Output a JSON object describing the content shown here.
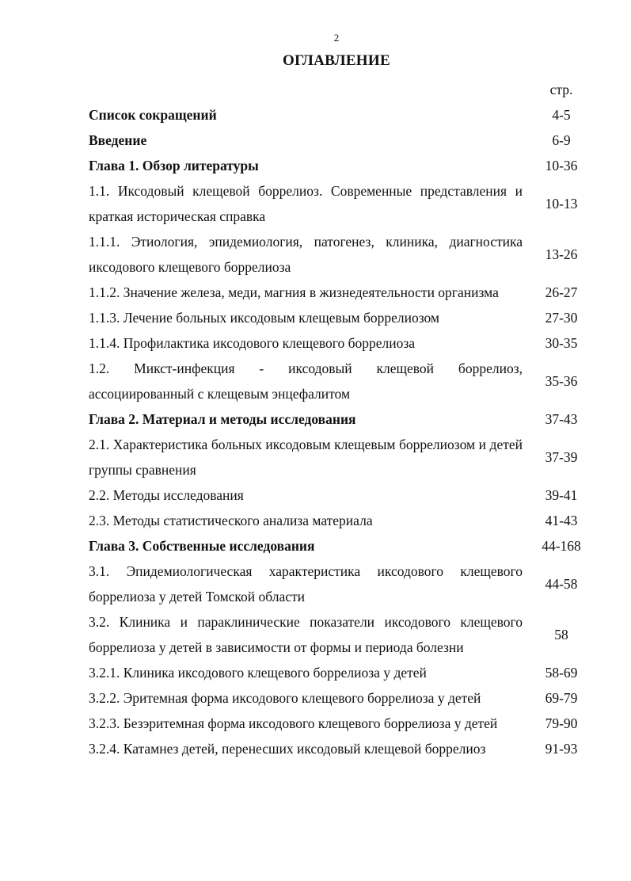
{
  "page_number": "2",
  "title": "ОГЛАВЛЕНИЕ",
  "page_column_header": "стр.",
  "entries": [
    {
      "text": "Список сокращений",
      "pages": "4-5",
      "bold": true
    },
    {
      "text": "Введение",
      "pages": "6-9",
      "bold": true
    },
    {
      "text": "Глава 1. Обзор литературы",
      "pages": "10-36",
      "bold": true
    },
    {
      "text": "1.1. Иксодовый клещевой боррелиоз. Современные представления и краткая историческая справка",
      "pages": "10-13",
      "bold": false
    },
    {
      "text": "1.1.1. Этиология, эпидемиология, патогенез, клиника, диагностика иксодового клещевого боррелиоза",
      "pages": "13-26",
      "bold": false
    },
    {
      "text": "1.1.2. Значение железа, меди, магния в жизнедеятельности организма",
      "pages": "26-27",
      "bold": false
    },
    {
      "text": "1.1.3. Лечение больных иксодовым клещевым боррелиозом",
      "pages": "27-30",
      "bold": false
    },
    {
      "text": "1.1.4. Профилактика иксодового клещевого боррелиоза",
      "pages": "30-35",
      "bold": false
    },
    {
      "text": "1.2. Микст-инфекция - иксодовый клещевой боррелиоз, ассоциированный с клещевым энцефалитом",
      "pages": "35-36",
      "bold": false
    },
    {
      "text": "Глава 2. Материал и методы исследования",
      "pages": "37-43",
      "bold": true
    },
    {
      "text": "2.1. Характеристика больных иксодовым клещевым боррелиозом и детей группы сравнения",
      "pages": "37-39",
      "bold": false
    },
    {
      "text": "2.2. Методы исследования",
      "pages": "39-41",
      "bold": false
    },
    {
      "text": "2.3. Методы статистического анализа материала",
      "pages": "41-43",
      "bold": false
    },
    {
      "text": "Глава 3. Собственные исследования",
      "pages": "44-168",
      "bold": true
    },
    {
      "text": "3.1. Эпидемиологическая характеристика иксодового клещевого боррелиоза у детей Томской области",
      "pages": "44-58",
      "bold": false
    },
    {
      "text": "3.2. Клиника и параклинические показатели иксодового клещевого боррелиоза у детей в зависимости от формы и периода болезни",
      "pages": "58",
      "bold": false
    },
    {
      "text": "3.2.1. Клиника иксодового клещевого боррелиоза у детей",
      "pages": "58-69",
      "bold": false
    },
    {
      "text": "3.2.2. Эритемная форма иксодового клещевого боррелиоза у детей",
      "pages": "69-79",
      "bold": false
    },
    {
      "text": "3.2.3. Безэритемная форма иксодового клещевого боррелиоза у детей",
      "pages": "79-90",
      "bold": false
    },
    {
      "text": "3.2.4. Катамнез детей, перенесших иксодовый клещевой боррелиоз",
      "pages": "91-93",
      "bold": false
    }
  ]
}
